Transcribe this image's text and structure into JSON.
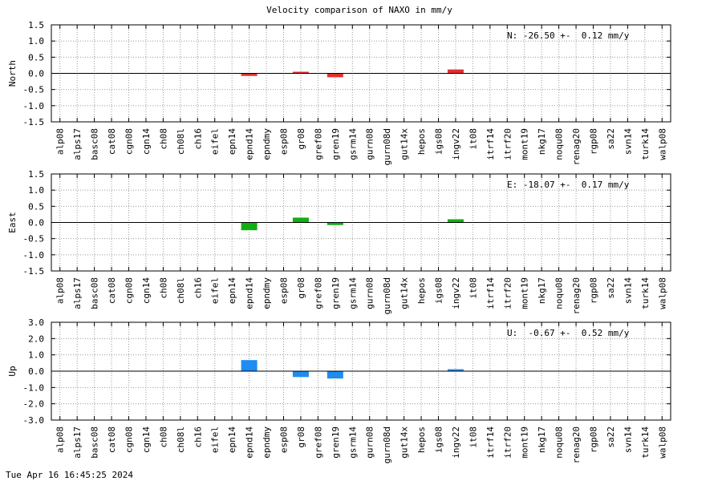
{
  "title": "Velocity comparison of NAXO in mm/y",
  "timestamp": "Tue Apr 16 16:45:25 2024",
  "chart_data": [
    {
      "type": "bar",
      "ylabel": "North",
      "annotation": "N: -26.50 +-  0.12 mm/y",
      "color": "#e03030",
      "ylim": [
        -1.5,
        1.5
      ],
      "yticks": [
        -1.5,
        -1.0,
        -0.5,
        0.0,
        0.5,
        1.0,
        1.5
      ],
      "yticklabels": [
        "-1.5",
        "-1.0",
        "-0.5",
        "0.0",
        "0.5",
        "1.0",
        "1.5"
      ],
      "grid": true,
      "categories": [
        "alp08",
        "alps17",
        "basc08",
        "cat08",
        "cgn08",
        "cgn14",
        "ch08",
        "ch08l",
        "ch16",
        "eifel",
        "epn14",
        "epnd14",
        "epndmy",
        "esp08",
        "gr08",
        "gref08",
        "gren19",
        "gsrm14",
        "gurn08",
        "gurn08d",
        "gut14x",
        "hepos",
        "igs08",
        "ingv22",
        "it08",
        "itrf14",
        "itrf20",
        "mont19",
        "nkg17",
        "noqu08",
        "renag20",
        "rgp08",
        "sa22",
        "svn14",
        "turk14",
        "walp08"
      ],
      "values": [
        null,
        null,
        null,
        null,
        null,
        null,
        null,
        null,
        null,
        null,
        null,
        -0.08,
        null,
        null,
        0.02,
        null,
        -0.12,
        null,
        null,
        null,
        null,
        null,
        null,
        0.12,
        null,
        null,
        null,
        null,
        null,
        null,
        null,
        null,
        null,
        null,
        null,
        null
      ]
    },
    {
      "type": "bar",
      "ylabel": "East",
      "annotation": "E: -18.07 +-  0.17 mm/y",
      "color": "#10b010",
      "ylim": [
        -1.5,
        1.5
      ],
      "yticks": [
        -1.5,
        -1.0,
        -0.5,
        0.0,
        0.5,
        1.0,
        1.5
      ],
      "yticklabels": [
        "-1.5",
        "-1.0",
        "-0.5",
        "0.0",
        "0.5",
        "1.0",
        "1.5"
      ],
      "grid": true,
      "categories": [
        "alp08",
        "alps17",
        "basc08",
        "cat08",
        "cgn08",
        "cgn14",
        "ch08",
        "ch08l",
        "ch16",
        "eifel",
        "epn14",
        "epnd14",
        "epndmy",
        "esp08",
        "gr08",
        "gref08",
        "gren19",
        "gsrm14",
        "gurn08",
        "gurn08d",
        "gut14x",
        "hepos",
        "igs08",
        "ingv22",
        "it08",
        "itrf14",
        "itrf20",
        "mont19",
        "nkg17",
        "noqu08",
        "renag20",
        "rgp08",
        "sa22",
        "svn14",
        "turk14",
        "walp08"
      ],
      "values": [
        null,
        null,
        null,
        null,
        null,
        null,
        null,
        null,
        null,
        null,
        null,
        -0.24,
        null,
        null,
        0.15,
        null,
        -0.08,
        null,
        null,
        null,
        null,
        null,
        null,
        0.1,
        null,
        null,
        null,
        null,
        null,
        null,
        null,
        null,
        null,
        null,
        null,
        null
      ]
    },
    {
      "type": "bar",
      "ylabel": "Up",
      "annotation": "U:  -0.67 +-  0.52 mm/y",
      "color": "#1e8cf0",
      "ylim": [
        -3.0,
        3.0
      ],
      "yticks": [
        -3.0,
        -2.0,
        -1.0,
        0.0,
        1.0,
        2.0,
        3.0
      ],
      "yticklabels": [
        "-3.0",
        "-2.0",
        "-1.0",
        "0.0",
        "1.0",
        "2.0",
        "3.0"
      ],
      "grid": true,
      "categories": [
        "alp08",
        "alps17",
        "basc08",
        "cat08",
        "cgn08",
        "cgn14",
        "ch08",
        "ch08l",
        "ch16",
        "eifel",
        "epn14",
        "epnd14",
        "epndmy",
        "esp08",
        "gr08",
        "gref08",
        "gren19",
        "gsrm14",
        "gurn08",
        "gurn08d",
        "gut14x",
        "hepos",
        "igs08",
        "ingv22",
        "it08",
        "itrf14",
        "itrf20",
        "mont19",
        "nkg17",
        "noqu08",
        "renag20",
        "rgp08",
        "sa22",
        "svn14",
        "turk14",
        "walp08"
      ],
      "values": [
        null,
        null,
        null,
        null,
        null,
        null,
        null,
        null,
        null,
        null,
        null,
        0.68,
        null,
        null,
        -0.36,
        null,
        -0.45,
        null,
        null,
        null,
        null,
        null,
        null,
        0.12,
        null,
        null,
        null,
        null,
        null,
        null,
        null,
        null,
        null,
        null,
        null,
        null
      ]
    }
  ]
}
